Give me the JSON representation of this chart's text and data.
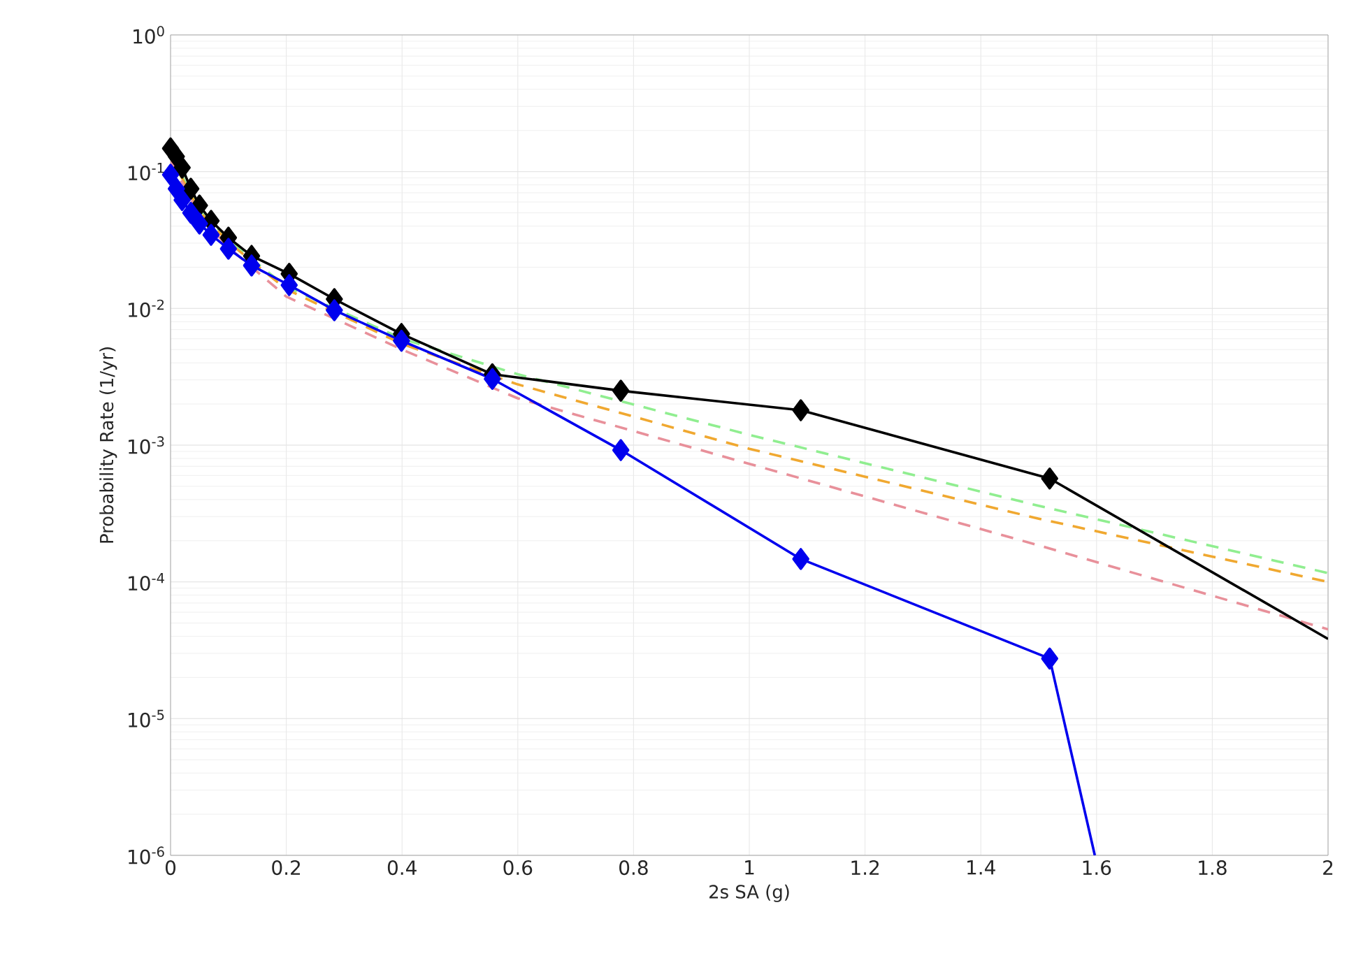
{
  "chart_data": {
    "type": "line",
    "xlabel": "2s SA (g)",
    "ylabel": "Probability Rate (1/yr)",
    "log": "y",
    "grid": true,
    "xlim": [
      0,
      2
    ],
    "xticks": [
      0,
      0.2,
      0.4,
      0.6,
      0.8,
      1,
      1.2,
      1.4,
      1.6,
      1.8,
      2
    ],
    "ylim": [
      1e-06,
      1
    ],
    "yticks": [
      {
        "value": 1e-06,
        "label": "10$^{-6}$"
      },
      {
        "value": 1e-05,
        "label": "10$^{-5}$"
      },
      {
        "value": 0.0001,
        "label": "10$^{-4}$"
      },
      {
        "value": 0.001,
        "label": "10$^{-3}$"
      },
      {
        "value": 0.01,
        "label": "10$^{-2}$"
      },
      {
        "value": 0.1,
        "label": "10$^{-1}$"
      },
      {
        "value": 1,
        "label": "10$^{0}$"
      }
    ],
    "series": [
      {
        "color": "#90ee90",
        "line_style": "dashed",
        "marker": "none",
        "x": [
          0,
          0.05,
          0.1,
          0.2,
          0.4,
          0.6,
          1.0,
          1.5,
          2.0
        ],
        "values": [
          0.135,
          0.053,
          0.0315,
          0.0144,
          0.006,
          0.0033,
          0.00119,
          0.00036,
          0.000116
        ]
      },
      {
        "color": "#f0a830",
        "line_style": "dashed",
        "marker": "none",
        "x": [
          0,
          0.05,
          0.1,
          0.2,
          0.4,
          0.6,
          1.0,
          1.5,
          2.0
        ],
        "values": [
          0.13,
          0.051,
          0.0305,
          0.0138,
          0.0055,
          0.00278,
          0.00094,
          0.00029,
          0.0001
        ]
      },
      {
        "color": "#e8909a",
        "line_style": "dashed",
        "marker": "none",
        "x": [
          0,
          0.05,
          0.1,
          0.2,
          0.4,
          0.6,
          1.0,
          1.5,
          2.0
        ],
        "values": [
          0.12,
          0.048,
          0.028,
          0.0122,
          0.005,
          0.0022,
          0.00073,
          0.000185,
          4.5e-05
        ]
      },
      {
        "color": "#000000",
        "line_style": "solid",
        "marker": "diamond",
        "x": [
          0,
          0.01,
          0.02,
          0.035,
          0.05,
          0.07,
          0.1,
          0.14,
          0.205,
          0.283,
          0.399,
          0.556,
          0.778,
          1.089,
          1.519
        ],
        "values": [
          0.148,
          0.129,
          0.107,
          0.075,
          0.0566,
          0.0437,
          0.0329,
          0.0242,
          0.0179,
          0.0117,
          0.0065,
          0.0033,
          0.0025,
          0.0018,
          0.00057
        ]
      },
      {
        "color": "#000000",
        "line_style": "solid",
        "marker": "none",
        "x": [
          1.519,
          2.0
        ],
        "values": [
          0.00057,
          3.83e-05
        ]
      },
      {
        "color": "#0000ee",
        "line_style": "solid",
        "marker": "diamond",
        "x": [
          0,
          0.01,
          0.02,
          0.035,
          0.05,
          0.07,
          0.1,
          0.14,
          0.205,
          0.283,
          0.399,
          0.556,
          0.778,
          1.089,
          1.519
        ],
        "values": [
          0.095,
          0.075,
          0.062,
          0.05,
          0.0417,
          0.0345,
          0.0273,
          0.0206,
          0.0148,
          0.0097,
          0.0058,
          0.00305,
          0.00092,
          0.000147,
          2.75e-05
        ]
      },
      {
        "color": "#0000ee",
        "line_style": "solid",
        "marker": "none",
        "x": [
          1.519,
          1.597
        ],
        "values": [
          2.75e-05,
          1e-06
        ]
      }
    ]
  }
}
